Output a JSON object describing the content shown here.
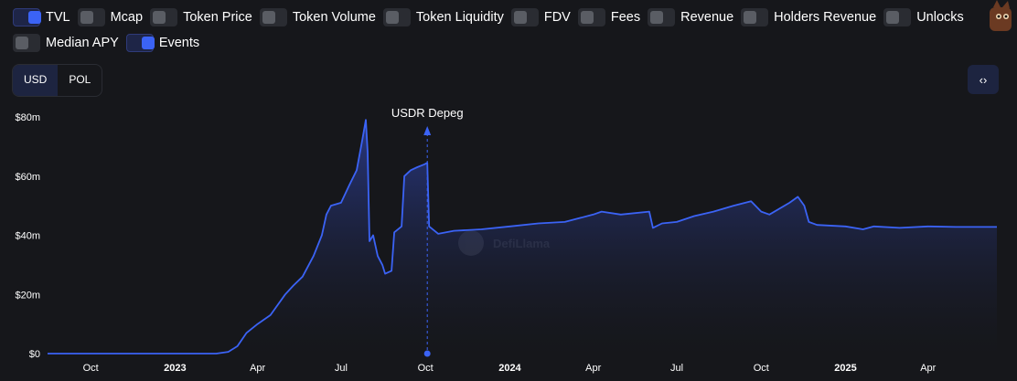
{
  "toggles": [
    {
      "label": "TVL",
      "on": true
    },
    {
      "label": "Mcap",
      "on": false
    },
    {
      "label": "Token Price",
      "on": false
    },
    {
      "label": "Token Volume",
      "on": false
    },
    {
      "label": "Token Liquidity",
      "on": false
    },
    {
      "label": "FDV",
      "on": false
    },
    {
      "label": "Fees",
      "on": false
    },
    {
      "label": "Revenue",
      "on": false
    },
    {
      "label": "Holders Revenue",
      "on": false
    },
    {
      "label": "Unlocks",
      "on": false
    },
    {
      "label": "Median APY",
      "on": false
    },
    {
      "label": "Events",
      "on": true
    }
  ],
  "currency": {
    "options": [
      "USD",
      "POL"
    ],
    "selected": "USD"
  },
  "embed_label": "‹›",
  "watermark": "DefiLlama",
  "colors": {
    "line": "#3b63f5",
    "fill_top": "#2a3a8a",
    "background": "#16171b",
    "grid": "#2a2c33"
  },
  "chart_data": {
    "type": "area",
    "title": "",
    "xlabel": "",
    "ylabel": "",
    "ylim": [
      0,
      80000000
    ],
    "y_ticks": [
      {
        "value": 0,
        "label": "$0"
      },
      {
        "value": 20000000,
        "label": "$20m"
      },
      {
        "value": 40000000,
        "label": "$40m"
      },
      {
        "value": 60000000,
        "label": "$60m"
      },
      {
        "value": 80000000,
        "label": "$80m"
      }
    ],
    "xlim": [
      "2022-08-15",
      "2025-06-15"
    ],
    "x_ticks": [
      {
        "date": "2022-10-01",
        "label": "Oct",
        "bold": false
      },
      {
        "date": "2023-01-01",
        "label": "2023",
        "bold": true
      },
      {
        "date": "2023-04-01",
        "label": "Apr",
        "bold": false
      },
      {
        "date": "2023-07-01",
        "label": "Jul",
        "bold": false
      },
      {
        "date": "2023-10-01",
        "label": "Oct",
        "bold": false
      },
      {
        "date": "2024-01-01",
        "label": "2024",
        "bold": true
      },
      {
        "date": "2024-04-01",
        "label": "Apr",
        "bold": false
      },
      {
        "date": "2024-07-01",
        "label": "Jul",
        "bold": false
      },
      {
        "date": "2024-10-01",
        "label": "Oct",
        "bold": false
      },
      {
        "date": "2025-01-01",
        "label": "2025",
        "bold": true
      },
      {
        "date": "2025-04-01",
        "label": "Apr",
        "bold": false
      }
    ],
    "grid": false,
    "series": [
      {
        "name": "TVL",
        "points": [
          [
            "2022-08-15",
            0
          ],
          [
            "2023-02-15",
            0
          ],
          [
            "2023-02-28",
            600000
          ],
          [
            "2023-03-10",
            2500000
          ],
          [
            "2023-03-20",
            7000000
          ],
          [
            "2023-04-01",
            10000000
          ],
          [
            "2023-04-15",
            13000000
          ],
          [
            "2023-05-01",
            20000000
          ],
          [
            "2023-05-10",
            23000000
          ],
          [
            "2023-05-20",
            26000000
          ],
          [
            "2023-06-01",
            33000000
          ],
          [
            "2023-06-10",
            40000000
          ],
          [
            "2023-06-15",
            47000000
          ],
          [
            "2023-06-20",
            50000000
          ],
          [
            "2023-07-01",
            51000000
          ],
          [
            "2023-07-10",
            57000000
          ],
          [
            "2023-07-18",
            62000000
          ],
          [
            "2023-07-24",
            72000000
          ],
          [
            "2023-07-28",
            79000000
          ],
          [
            "2023-07-30",
            68000000
          ],
          [
            "2023-08-01",
            38000000
          ],
          [
            "2023-08-05",
            40000000
          ],
          [
            "2023-08-10",
            33000000
          ],
          [
            "2023-08-15",
            30000000
          ],
          [
            "2023-08-18",
            27000000
          ],
          [
            "2023-08-25",
            28000000
          ],
          [
            "2023-08-28",
            41000000
          ],
          [
            "2023-09-05",
            43000000
          ],
          [
            "2023-09-08",
            60000000
          ],
          [
            "2023-09-15",
            62000000
          ],
          [
            "2023-09-22",
            63000000
          ],
          [
            "2023-09-30",
            64000000
          ],
          [
            "2023-10-03",
            64500000
          ],
          [
            "2023-10-05",
            43000000
          ],
          [
            "2023-10-15",
            40500000
          ],
          [
            "2023-11-01",
            41500000
          ],
          [
            "2023-12-01",
            42000000
          ],
          [
            "2024-01-01",
            43000000
          ],
          [
            "2024-02-01",
            44000000
          ],
          [
            "2024-03-01",
            44500000
          ],
          [
            "2024-04-01",
            47000000
          ],
          [
            "2024-04-10",
            48000000
          ],
          [
            "2024-05-01",
            47000000
          ],
          [
            "2024-06-01",
            48000000
          ],
          [
            "2024-06-05",
            42500000
          ],
          [
            "2024-06-15",
            44000000
          ],
          [
            "2024-07-01",
            44500000
          ],
          [
            "2024-07-20",
            46500000
          ],
          [
            "2024-08-10",
            48000000
          ],
          [
            "2024-09-01",
            50000000
          ],
          [
            "2024-09-20",
            51500000
          ],
          [
            "2024-10-01",
            48000000
          ],
          [
            "2024-10-10",
            47000000
          ],
          [
            "2024-11-01",
            51000000
          ],
          [
            "2024-11-10",
            53000000
          ],
          [
            "2024-11-17",
            50000000
          ],
          [
            "2024-11-22",
            44500000
          ],
          [
            "2024-12-01",
            43500000
          ],
          [
            "2025-01-01",
            43000000
          ],
          [
            "2025-01-20",
            42000000
          ],
          [
            "2025-02-01",
            43000000
          ],
          [
            "2025-03-01",
            42500000
          ],
          [
            "2025-04-01",
            43000000
          ],
          [
            "2025-05-01",
            42800000
          ],
          [
            "2025-06-15",
            42800000
          ]
        ]
      }
    ],
    "annotations": [
      {
        "label": "USDR Depeg",
        "date": "2023-10-03",
        "series": "Events"
      }
    ]
  }
}
